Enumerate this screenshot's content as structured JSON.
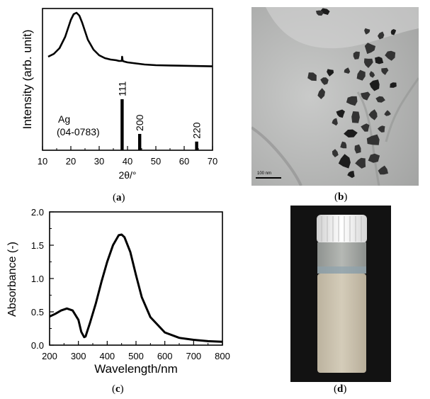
{
  "panels": {
    "a": {
      "label": "a"
    },
    "b": {
      "label": "b",
      "scale_bar": "100 nm"
    },
    "c": {
      "label": "c"
    },
    "d": {
      "label": "d"
    }
  },
  "chart_data": [
    {
      "type": "line",
      "panel": "a",
      "xlabel": "2θ/°",
      "ylabel": "Intensity (arb. unit)",
      "xlim": [
        10,
        70
      ],
      "x_ticks": [
        "10",
        "20",
        "30",
        "40",
        "50",
        "60",
        "70"
      ],
      "y_ticks_shown": false,
      "series": [
        {
          "x": [
            12,
            14,
            16,
            18,
            19,
            20,
            21,
            22,
            23,
            24,
            25,
            26,
            28,
            30,
            32,
            34,
            36,
            37,
            38,
            38.1,
            38.3,
            39,
            40,
            42,
            44,
            46,
            50,
            55,
            60,
            65,
            70
          ],
          "y": [
            0.66,
            0.68,
            0.72,
            0.8,
            0.86,
            0.92,
            0.96,
            0.97,
            0.95,
            0.9,
            0.84,
            0.78,
            0.71,
            0.67,
            0.65,
            0.64,
            0.635,
            0.63,
            0.63,
            0.66,
            0.63,
            0.625,
            0.62,
            0.615,
            0.61,
            0.605,
            0.6,
            0.598,
            0.596,
            0.594,
            0.592
          ]
        }
      ],
      "reference": {
        "name": "Ag",
        "card": "(04-0783)",
        "lines": [
          {
            "x": 38.1,
            "intensity": 1.0,
            "hkl": "111"
          },
          {
            "x": 44.3,
            "intensity": 0.32,
            "hkl": "200"
          },
          {
            "x": 64.4,
            "intensity": 0.17,
            "hkl": "220"
          }
        ]
      }
    },
    {
      "type": "line",
      "panel": "c",
      "xlabel": "Wavelength/nm",
      "ylabel": "Absorbance (-)",
      "xlim": [
        200,
        800
      ],
      "ylim": [
        0.0,
        2.0
      ],
      "x_ticks": [
        "200",
        "300",
        "400",
        "500",
        "600",
        "700",
        "800"
      ],
      "y_ticks": [
        "0.0",
        "0.5",
        "1.0",
        "1.5",
        "2.0"
      ],
      "series": [
        {
          "x": [
            200,
            220,
            240,
            260,
            280,
            300,
            310,
            320,
            325,
            330,
            340,
            360,
            380,
            400,
            420,
            440,
            450,
            460,
            480,
            500,
            520,
            550,
            600,
            650,
            700,
            750,
            800
          ],
          "y": [
            0.43,
            0.47,
            0.52,
            0.55,
            0.52,
            0.38,
            0.2,
            0.12,
            0.13,
            0.2,
            0.33,
            0.62,
            0.95,
            1.25,
            1.5,
            1.65,
            1.66,
            1.62,
            1.4,
            1.05,
            0.72,
            0.42,
            0.19,
            0.11,
            0.08,
            0.06,
            0.05
          ]
        }
      ]
    }
  ]
}
